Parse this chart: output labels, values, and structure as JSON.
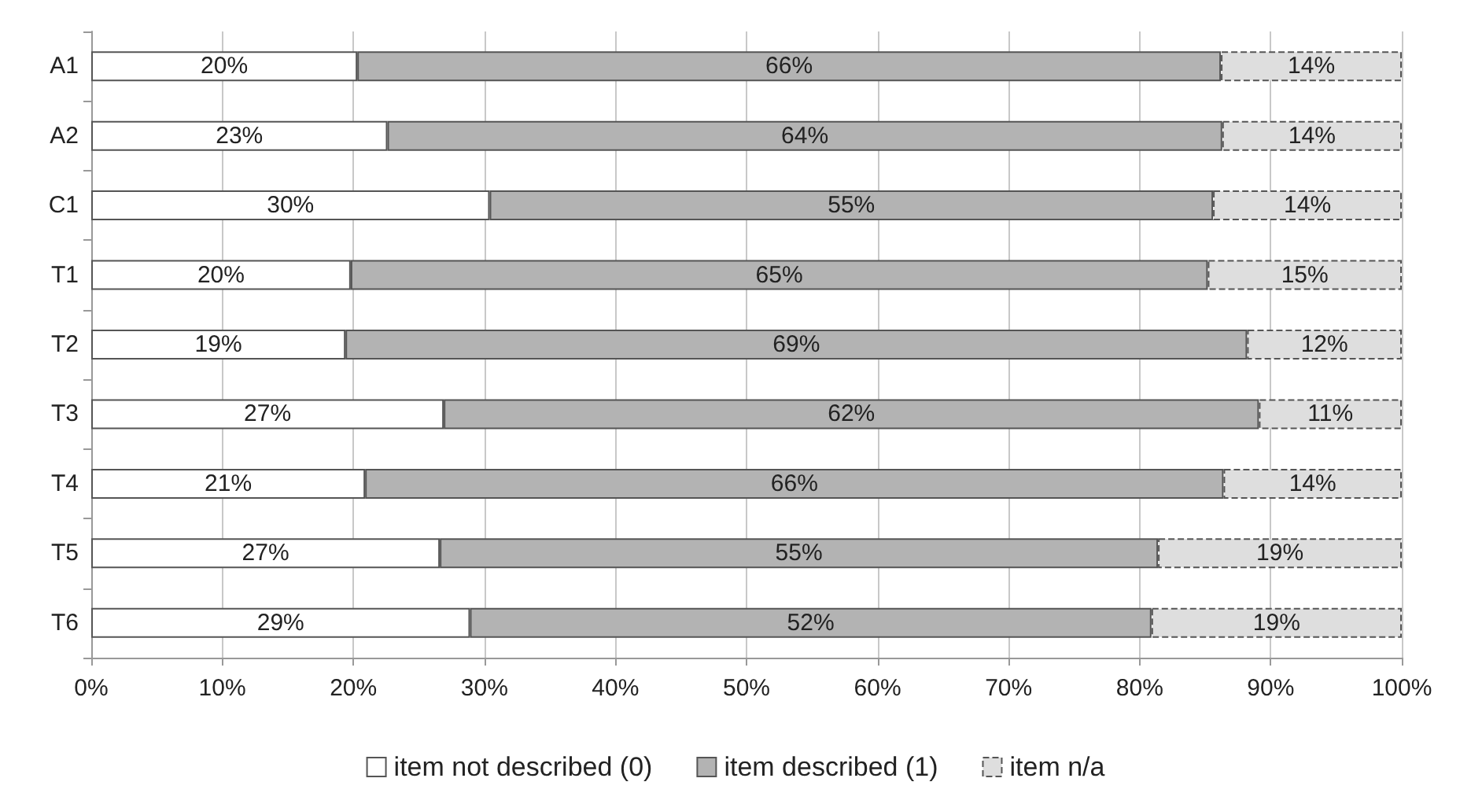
{
  "chart_data": {
    "type": "bar",
    "orientation": "horizontal",
    "stacked": true,
    "categories": [
      "A1",
      "A2",
      "C1",
      "T1",
      "T2",
      "T3",
      "T4",
      "T5",
      "T6"
    ],
    "series": [
      {
        "name": "item not described (0)",
        "color": "#ffffff",
        "line_style": "solid",
        "values": [
          20.3,
          22.6,
          30.4,
          19.8,
          19.4,
          26.9,
          20.9,
          26.6,
          28.9
        ],
        "value_labels": [
          "20%",
          "23%",
          "30%",
          "20%",
          "19%",
          "27%",
          "21%",
          "27%",
          "29%"
        ]
      },
      {
        "name": "item described (1)",
        "color": "#b3b3b3",
        "line_style": "solid",
        "values": [
          65.9,
          63.7,
          55.2,
          65.4,
          68.8,
          62.2,
          65.5,
          54.8,
          52.0
        ],
        "value_labels": [
          "66%",
          "64%",
          "55%",
          "65%",
          "69%",
          "62%",
          "66%",
          "55%",
          "52%"
        ]
      },
      {
        "name": "item n/a",
        "color": "#dedede",
        "line_style": "dashed",
        "values": [
          13.8,
          13.7,
          14.4,
          14.8,
          11.8,
          10.9,
          13.6,
          18.6,
          19.1
        ],
        "value_labels": [
          "14%",
          "14%",
          "14%",
          "15%",
          "12%",
          "11%",
          "14%",
          "19%",
          "19%"
        ]
      }
    ],
    "xlim": [
      0,
      100
    ],
    "xticks": [
      {
        "value": 0,
        "label": "0%"
      },
      {
        "value": 10,
        "label": "10%"
      },
      {
        "value": 20,
        "label": "20%"
      },
      {
        "value": 30,
        "label": "30%"
      },
      {
        "value": 40,
        "label": "40%"
      },
      {
        "value": 50,
        "label": "50%"
      },
      {
        "value": 60,
        "label": "60%"
      },
      {
        "value": 70,
        "label": "70%"
      },
      {
        "value": 80,
        "label": "80%"
      },
      {
        "value": 90,
        "label": "90%"
      },
      {
        "value": 100,
        "label": "100%"
      }
    ],
    "grid": "x",
    "legend": "bottom"
  }
}
